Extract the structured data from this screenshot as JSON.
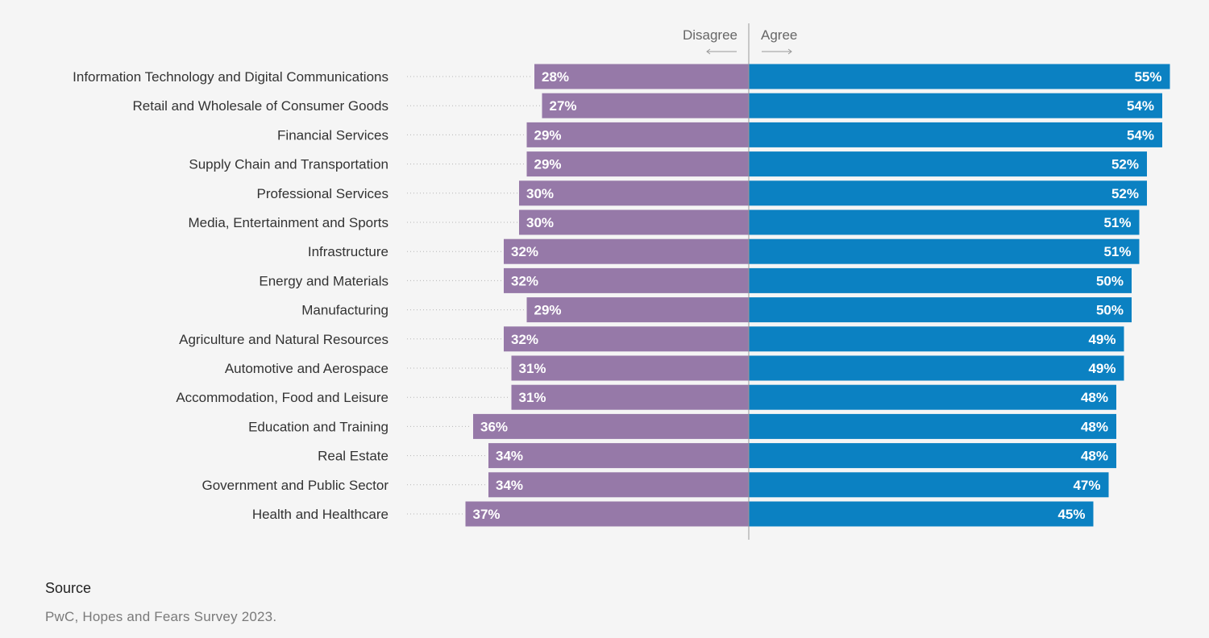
{
  "chart_data": {
    "type": "bar",
    "orientation": "horizontal-diverging",
    "direction_labels": {
      "left": "Disagree",
      "right": "Agree"
    },
    "categories": [
      "Information Technology and Digital Communications",
      "Retail and Wholesale of Consumer Goods",
      "Financial Services",
      "Supply Chain and Transportation",
      "Professional Services",
      "Media, Entertainment and Sports",
      "Infrastructure",
      "Energy and Materials",
      "Manufacturing",
      "Agriculture and Natural Resources",
      "Automotive and Aerospace",
      "Accommodation, Food and Leisure",
      "Education and Training",
      "Real Estate",
      "Government and Public Sector",
      "Health and Healthcare"
    ],
    "series": [
      {
        "name": "Disagree",
        "color": "#9679a8",
        "values": [
          28,
          27,
          29,
          29,
          30,
          30,
          32,
          32,
          29,
          32,
          31,
          31,
          36,
          34,
          34,
          37
        ],
        "labels": [
          "28%",
          "27%",
          "29%",
          "29%",
          "30%",
          "30%",
          "32%",
          "32%",
          "29%",
          "32%",
          "31%",
          "31%",
          "36%",
          "34%",
          "34%",
          "37%"
        ]
      },
      {
        "name": "Agree",
        "color": "#0b81c2",
        "values": [
          55,
          54,
          54,
          52,
          52,
          51,
          51,
          50,
          50,
          49,
          49,
          48,
          48,
          48,
          47,
          45
        ],
        "labels": [
          "55%",
          "54%",
          "54%",
          "52%",
          "52%",
          "51%",
          "51%",
          "50%",
          "50%",
          "49%",
          "49%",
          "48%",
          "48%",
          "48%",
          "47%",
          "45%"
        ]
      }
    ],
    "unit": "%",
    "grid": false
  },
  "source": {
    "title": "Source",
    "text": "PwC, Hopes and Fears Survey 2023."
  }
}
